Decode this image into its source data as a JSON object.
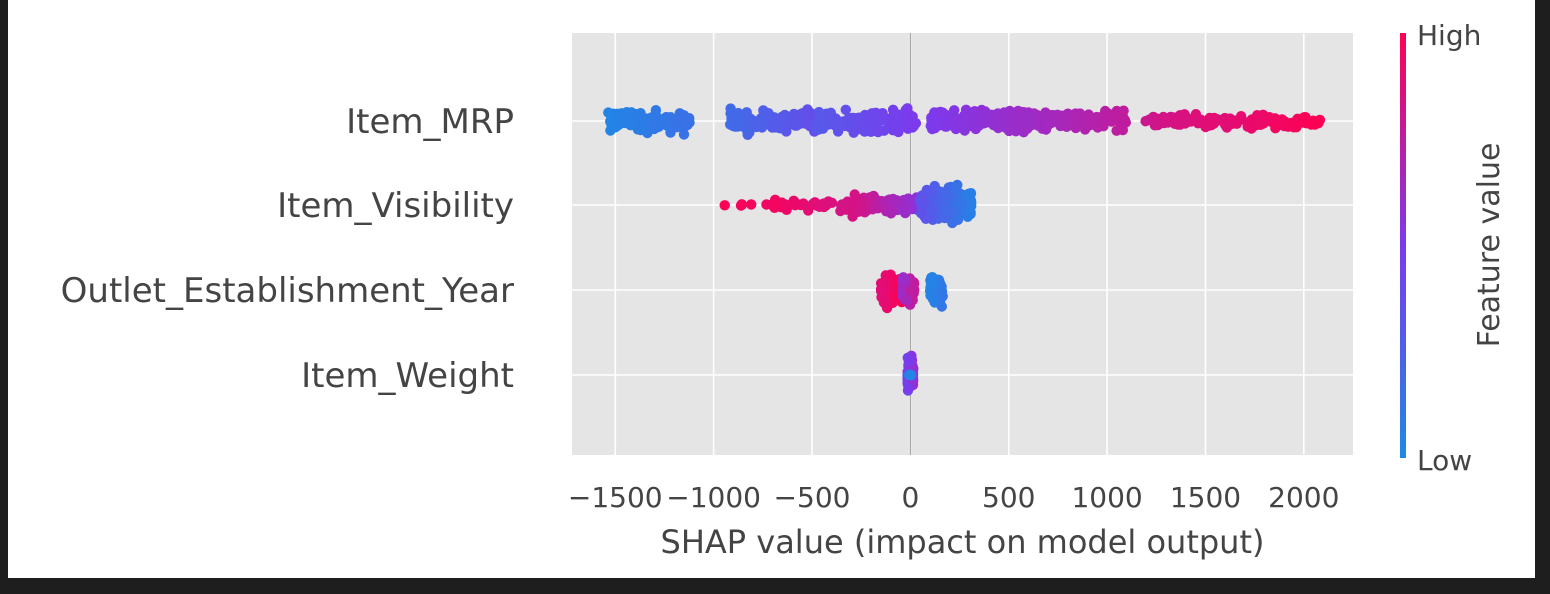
{
  "chart_data": {
    "type": "scatter",
    "subtype": "shap-beeswarm",
    "title": "",
    "xlabel": "SHAP value (impact on model output)",
    "ylabel": "",
    "xlim": [
      -1720,
      2250
    ],
    "xticks": [
      -1500,
      -1000,
      -500,
      0,
      500,
      1000,
      1500,
      2000
    ],
    "xtick_labels": [
      "−1500",
      "−1000",
      "−500",
      "0",
      "500",
      "1000",
      "1500",
      "2000"
    ],
    "grid": true,
    "features": [
      {
        "name": "Item_MRP",
        "clusters": [
          {
            "x": [
              -1540,
              -1120
            ],
            "feature_value": [
              0.02,
              0.15
            ],
            "density": 120,
            "spread": 1.0
          },
          {
            "x": [
              -920,
              -480
            ],
            "feature_value": [
              0.18,
              0.38
            ],
            "density": 130,
            "spread": 1.0
          },
          {
            "x": [
              -480,
              30
            ],
            "feature_value": [
              0.3,
              0.5
            ],
            "density": 150,
            "spread": 1.0
          },
          {
            "x": [
              100,
              700
            ],
            "feature_value": [
              0.5,
              0.66
            ],
            "density": 170,
            "spread": 1.0
          },
          {
            "x": [
              600,
              1100
            ],
            "feature_value": [
              0.62,
              0.76
            ],
            "density": 120,
            "spread": 0.9
          },
          {
            "x": [
              1180,
              1560
            ],
            "feature_value": [
              0.8,
              0.9
            ],
            "density": 60,
            "spread": 0.65
          },
          {
            "x": [
              1560,
              2090
            ],
            "feature_value": [
              0.88,
              1.0
            ],
            "density": 70,
            "spread": 0.6
          }
        ]
      },
      {
        "name": "Item_Visibility",
        "clusters": [
          {
            "x": [
              -1000,
              -700
            ],
            "feature_value": [
              0.94,
              1.0
            ],
            "density": 7,
            "spread": 0.12
          },
          {
            "x": [
              -700,
              -300
            ],
            "feature_value": [
              0.82,
              0.96
            ],
            "density": 45,
            "spread": 0.45
          },
          {
            "x": [
              -300,
              50
            ],
            "feature_value": [
              0.55,
              0.85
            ],
            "density": 100,
            "spread": 0.85
          },
          {
            "x": [
              50,
              310
            ],
            "feature_value": [
              0.05,
              0.35
            ],
            "density": 180,
            "spread": 1.5
          }
        ]
      },
      {
        "name": "Outlet_Establishment_Year",
        "clusters": [
          {
            "x": [
              -150,
              -40
            ],
            "feature_value": [
              0.88,
              1.0
            ],
            "density": 120,
            "spread": 1.3
          },
          {
            "x": [
              -40,
              20
            ],
            "feature_value": [
              0.6,
              0.8
            ],
            "density": 90,
            "spread": 1.3
          },
          {
            "x": [
              100,
              165
            ],
            "feature_value": [
              0.02,
              0.12
            ],
            "density": 90,
            "spread": 1.3
          }
        ]
      },
      {
        "name": "Item_Weight",
        "clusters": [
          {
            "x": [
              -15,
              15
            ],
            "feature_value": [
              0.45,
              0.6
            ],
            "density": 120,
            "spread": 1.4
          },
          {
            "x": [
              -8,
              8
            ],
            "feature_value": [
              0.0,
              0.1
            ],
            "density": 4,
            "spread": 0.1
          }
        ]
      }
    ],
    "colorbar": {
      "label": "Feature value",
      "high_label": "High",
      "low_label": "Low",
      "low_color": "#1e88e5",
      "mid_color": "#7c3aed",
      "high_color": "#ff0052"
    },
    "colors": {
      "plot_background": "#e5e5e5",
      "grid": "#ffffff",
      "zero_line": "#999999",
      "text": "#444444"
    }
  }
}
